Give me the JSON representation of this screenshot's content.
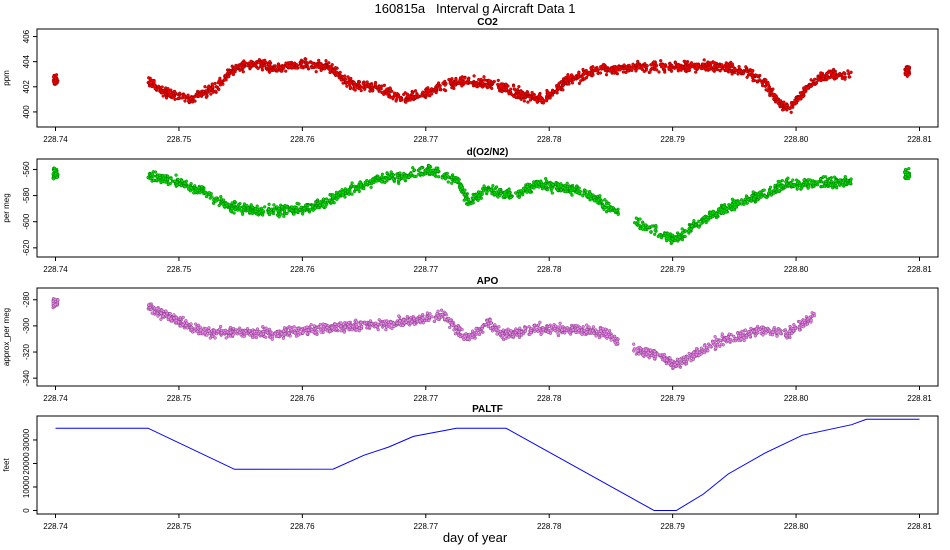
{
  "title": "160815a   Interval g Aircraft Data 1",
  "xlabel": "day of year",
  "chart_data": [
    {
      "type": "scatter",
      "title": "CO2",
      "ylabel": "ppm",
      "color": "#ff0000",
      "xlim": [
        228.7385,
        228.8115
      ],
      "ylim": [
        398.8,
        406.6
      ],
      "xticks": [
        "228.74",
        "228.75",
        "228.76",
        "228.77",
        "228.78",
        "228.79",
        "228.80",
        "228.81"
      ],
      "yticks": [
        "400",
        "402",
        "404",
        "406"
      ],
      "x": [
        228.74,
        228.7475,
        228.749,
        228.751,
        228.753,
        228.7545,
        228.756,
        228.758,
        228.76,
        228.762,
        228.764,
        228.766,
        228.768,
        228.77,
        228.7725,
        228.775,
        228.7775,
        228.7795,
        228.7815,
        228.784,
        228.787,
        228.79,
        228.793,
        228.796,
        228.7975,
        228.7985,
        228.7995,
        228.8008,
        228.802,
        228.8045,
        228.809
      ],
      "y": [
        402.5,
        402.5,
        401.5,
        401.0,
        402.0,
        403.5,
        403.8,
        403.5,
        403.8,
        403.6,
        402.2,
        402.0,
        401.0,
        401.5,
        402.4,
        402.3,
        401.5,
        401.0,
        402.5,
        403.3,
        403.6,
        403.6,
        403.7,
        403.3,
        402.3,
        400.8,
        400.3,
        401.8,
        402.8,
        403.0,
        403.3
      ]
    },
    {
      "type": "scatter",
      "title": "d(O2/N2)",
      "ylabel": "per meg",
      "color": "#00e000",
      "xlim": [
        228.7385,
        228.8115
      ],
      "ylim": [
        -627,
        -552
      ],
      "xticks": [
        "228.74",
        "228.75",
        "228.76",
        "228.77",
        "228.78",
        "228.79",
        "228.80",
        "228.81"
      ],
      "yticks": [
        "-620",
        "-600",
        "-580",
        "-560"
      ],
      "x": [
        228.74,
        228.7475,
        228.75,
        228.752,
        228.754,
        228.756,
        228.758,
        228.76,
        228.762,
        228.764,
        228.766,
        228.768,
        228.77,
        228.771,
        228.7725,
        228.7735,
        228.775,
        228.777,
        228.779,
        228.781,
        228.783,
        228.7845,
        228.7865,
        228.788,
        228.79,
        228.7905,
        228.792,
        228.794,
        228.7965,
        228.799,
        228.801,
        228.8045,
        228.809
      ],
      "y": [
        -563,
        -565,
        -570,
        -577,
        -588,
        -591,
        -592,
        -590,
        -585,
        -575,
        -568,
        -565,
        -561,
        -562,
        -568,
        -585,
        -575,
        -580,
        -572,
        -573,
        -578,
        -587,
        -598,
        -605,
        -613,
        -612,
        -601,
        -591,
        -582,
        -572,
        -571,
        -569,
        -564
      ]
    },
    {
      "type": "scatter",
      "title": "APO",
      "ylabel": "approx_per meg",
      "color": "#ee82ee",
      "xlim": [
        228.7385,
        228.8115
      ],
      "ylim": [
        -346,
        -271
      ],
      "xticks": [
        "228.74",
        "228.75",
        "228.76",
        "228.77",
        "228.78",
        "228.79",
        "228.80",
        "228.81"
      ],
      "yticks": [
        "-340",
        "-320",
        "-300",
        "-280"
      ],
      "x": [
        228.74,
        228.7475,
        228.75,
        228.752,
        228.755,
        228.758,
        228.761,
        228.764,
        228.767,
        228.77,
        228.7715,
        228.7725,
        228.7735,
        228.775,
        228.7765,
        228.779,
        228.782,
        228.7845,
        228.7865,
        228.789,
        228.79,
        228.791,
        228.794,
        228.797,
        228.7995,
        228.8015,
        228.8045
      ],
      "y": [
        -282,
        -285,
        -297,
        -305,
        -305,
        -306,
        -303,
        -300,
        -298,
        -294,
        -292,
        -302,
        -310,
        -298,
        -307,
        -302,
        -303,
        -305,
        -318,
        -322,
        -330,
        -326,
        -311,
        -303,
        -305,
        -292,
        -287
      ]
    },
    {
      "type": "line",
      "title": "PALTF",
      "ylabel": "feet",
      "color": "#0000ff",
      "xlim": [
        228.7385,
        228.8115
      ],
      "ylim": [
        -1500,
        40200
      ],
      "xticks": [
        "228.74",
        "228.75",
        "228.76",
        "228.77",
        "228.78",
        "228.79",
        "228.80",
        "228.81"
      ],
      "yticks": [
        "0",
        "10000",
        "20000",
        "30000"
      ],
      "x": [
        228.74,
        228.7475,
        228.7545,
        228.7625,
        228.765,
        228.767,
        228.769,
        228.7725,
        228.7765,
        228.7885,
        228.7903,
        228.7925,
        228.7945,
        228.7975,
        228.8005,
        228.8045,
        228.8057,
        228.81
      ],
      "y": [
        35000,
        35000,
        17500,
        17600,
        23500,
        27000,
        31500,
        35000,
        35000,
        0,
        0,
        7000,
        15500,
        24500,
        32000,
        36500,
        38800,
        38800
      ]
    }
  ]
}
